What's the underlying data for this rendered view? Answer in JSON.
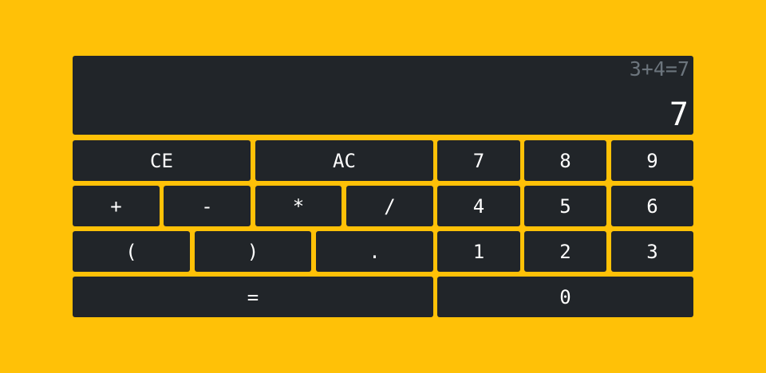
{
  "colors": {
    "background": "#FFC107",
    "panel": "#212529",
    "history_text": "#6c757d",
    "text": "#ffffff"
  },
  "display": {
    "history": "3+4=7",
    "current": "7"
  },
  "buttons": {
    "ce": "CE",
    "ac": "AC",
    "seven": "7",
    "eight": "8",
    "nine": "9",
    "plus": "+",
    "minus": "-",
    "multiply": "*",
    "divide": "/",
    "four": "4",
    "five": "5",
    "six": "6",
    "open_paren": "(",
    "close_paren": ")",
    "decimal": ".",
    "one": "1",
    "two": "2",
    "three": "3",
    "equals": "=",
    "zero": "0"
  }
}
